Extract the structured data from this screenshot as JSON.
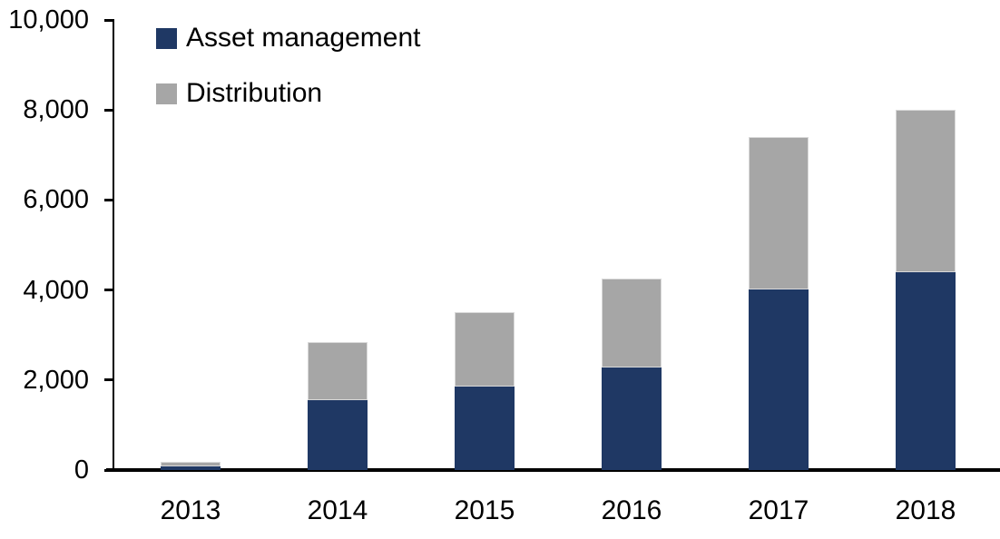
{
  "chart_data": {
    "type": "bar",
    "stacked": true,
    "title": "",
    "xlabel": "",
    "ylabel": "",
    "categories": [
      "2013",
      "2014",
      "2015",
      "2016",
      "2017",
      "2018"
    ],
    "series": [
      {
        "name": "Asset management",
        "color": "#1F3864",
        "values": [
          90,
          1550,
          1850,
          2280,
          4010,
          4400
        ]
      },
      {
        "name": "Distribution",
        "color": "#A6A6A6",
        "values": [
          100,
          1300,
          1650,
          1970,
          3390,
          3600
        ]
      }
    ],
    "totals": [
      190,
      2850,
      3500,
      4250,
      7400,
      8000
    ],
    "ylim": [
      0,
      10000
    ],
    "yticks": [
      0,
      2000,
      4000,
      6000,
      8000,
      10000
    ],
    "ytick_labels": [
      "0",
      "2,000",
      "4,000",
      "6,000",
      "8,000",
      "10,000"
    ],
    "grid": false,
    "legend_position": "top-left",
    "axis_color": "#000000",
    "background": "#FFFFFF"
  }
}
